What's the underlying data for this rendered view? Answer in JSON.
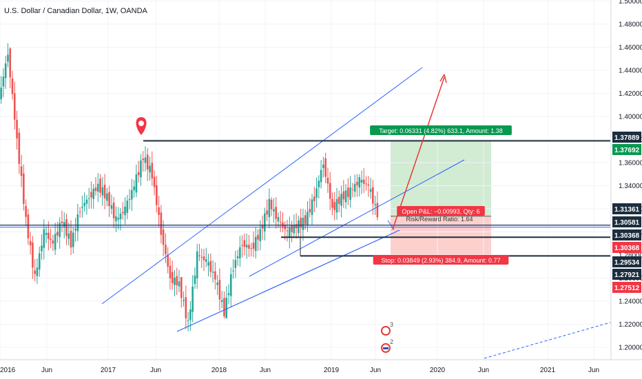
{
  "header": {
    "title": "U.S. Dollar / Canadian Dollar, 1W, OANDA"
  },
  "chart_data": {
    "type": "candlestick",
    "symbol": "U.S. Dollar / Canadian Dollar",
    "interval": "1W",
    "source": "OANDA",
    "ylim": [
      1.18,
      1.5
    ],
    "y_ticks": [
      "1.50000",
      "1.48000",
      "1.46000",
      "1.44000",
      "1.42000",
      "1.40000",
      "1.38000",
      "1.36000",
      "1.34000",
      "1.32000",
      "1.30000",
      "1.28000",
      "1.26000",
      "1.24000",
      "1.22000",
      "1.20000"
    ],
    "x_ticks": [
      "2016",
      "Jun",
      "2017",
      "Jun",
      "2018",
      "Jun",
      "2019",
      "Jun",
      "2020",
      "Jun",
      "2021",
      "Jun"
    ],
    "candles": [
      {
        "date": "2016-01",
        "o": 1.415,
        "h": 1.469,
        "l": 1.39,
        "c": 1.455
      },
      {
        "date": "2016-02",
        "o": 1.455,
        "h": 1.46,
        "l": 1.37,
        "c": 1.38
      },
      {
        "date": "2016-03",
        "o": 1.38,
        "h": 1.39,
        "l": 1.3,
        "c": 1.31
      },
      {
        "date": "2016-04",
        "o": 1.31,
        "h": 1.32,
        "l": 1.25,
        "c": 1.26
      },
      {
        "date": "2016-05",
        "o": 1.26,
        "h": 1.32,
        "l": 1.255,
        "c": 1.3
      },
      {
        "date": "2016-06",
        "o": 1.3,
        "h": 1.32,
        "l": 1.27,
        "c": 1.29
      },
      {
        "date": "2016-07",
        "o": 1.29,
        "h": 1.33,
        "l": 1.28,
        "c": 1.31
      },
      {
        "date": "2016-08",
        "o": 1.31,
        "h": 1.32,
        "l": 1.28,
        "c": 1.29
      },
      {
        "date": "2016-09",
        "o": 1.29,
        "h": 1.33,
        "l": 1.28,
        "c": 1.32
      },
      {
        "date": "2016-10",
        "o": 1.32,
        "h": 1.34,
        "l": 1.3,
        "c": 1.33
      },
      {
        "date": "2016-11",
        "o": 1.33,
        "h": 1.36,
        "l": 1.32,
        "c": 1.34
      },
      {
        "date": "2016-12",
        "o": 1.34,
        "h": 1.36,
        "l": 1.31,
        "c": 1.33
      },
      {
        "date": "2017-01",
        "o": 1.33,
        "h": 1.34,
        "l": 1.3,
        "c": 1.31
      },
      {
        "date": "2017-02",
        "o": 1.31,
        "h": 1.33,
        "l": 1.3,
        "c": 1.32
      },
      {
        "date": "2017-03",
        "o": 1.32,
        "h": 1.35,
        "l": 1.31,
        "c": 1.34
      },
      {
        "date": "2017-04",
        "o": 1.34,
        "h": 1.37,
        "l": 1.33,
        "c": 1.365
      },
      {
        "date": "2017-05",
        "o": 1.365,
        "h": 1.378,
        "l": 1.34,
        "c": 1.35
      },
      {
        "date": "2017-06",
        "o": 1.35,
        "h": 1.36,
        "l": 1.29,
        "c": 1.3
      },
      {
        "date": "2017-07",
        "o": 1.3,
        "h": 1.31,
        "l": 1.25,
        "c": 1.26
      },
      {
        "date": "2017-08",
        "o": 1.26,
        "h": 1.28,
        "l": 1.24,
        "c": 1.255
      },
      {
        "date": "2017-09",
        "o": 1.255,
        "h": 1.26,
        "l": 1.206,
        "c": 1.22
      },
      {
        "date": "2017-10",
        "o": 1.22,
        "h": 1.29,
        "l": 1.21,
        "c": 1.28
      },
      {
        "date": "2017-11",
        "o": 1.28,
        "h": 1.295,
        "l": 1.25,
        "c": 1.275
      },
      {
        "date": "2017-12",
        "o": 1.275,
        "h": 1.29,
        "l": 1.25,
        "c": 1.26
      },
      {
        "date": "2018-01",
        "o": 1.26,
        "h": 1.27,
        "l": 1.225,
        "c": 1.23
      },
      {
        "date": "2018-02",
        "o": 1.23,
        "h": 1.28,
        "l": 1.225,
        "c": 1.27
      },
      {
        "date": "2018-03",
        "o": 1.27,
        "h": 1.31,
        "l": 1.26,
        "c": 1.29
      },
      {
        "date": "2018-04",
        "o": 1.29,
        "h": 1.3,
        "l": 1.255,
        "c": 1.285
      },
      {
        "date": "2018-05",
        "o": 1.285,
        "h": 1.31,
        "l": 1.27,
        "c": 1.3
      },
      {
        "date": "2018-06",
        "o": 1.3,
        "h": 1.34,
        "l": 1.29,
        "c": 1.325
      },
      {
        "date": "2018-07",
        "o": 1.325,
        "h": 1.33,
        "l": 1.3,
        "c": 1.31
      },
      {
        "date": "2018-08",
        "o": 1.31,
        "h": 1.32,
        "l": 1.29,
        "c": 1.3
      },
      {
        "date": "2018-09",
        "o": 1.3,
        "h": 1.32,
        "l": 1.28,
        "c": 1.305
      },
      {
        "date": "2018-10",
        "o": 1.305,
        "h": 1.32,
        "l": 1.28,
        "c": 1.31
      },
      {
        "date": "2018-11",
        "o": 1.31,
        "h": 1.34,
        "l": 1.3,
        "c": 1.33
      },
      {
        "date": "2018-12",
        "o": 1.33,
        "h": 1.365,
        "l": 1.32,
        "c": 1.36
      },
      {
        "date": "2019-01",
        "o": 1.36,
        "h": 1.37,
        "l": 1.31,
        "c": 1.32
      },
      {
        "date": "2019-02",
        "o": 1.32,
        "h": 1.34,
        "l": 1.31,
        "c": 1.33
      },
      {
        "date": "2019-03",
        "o": 1.33,
        "h": 1.35,
        "l": 1.32,
        "c": 1.335
      },
      {
        "date": "2019-04",
        "o": 1.335,
        "h": 1.35,
        "l": 1.33,
        "c": 1.345
      },
      {
        "date": "2019-05",
        "o": 1.345,
        "h": 1.36,
        "l": 1.33,
        "c": 1.34
      },
      {
        "date": "2019-06",
        "o": 1.34,
        "h": 1.35,
        "l": 1.31,
        "c": 1.315
      },
      {
        "date": "2019-07",
        "o": 1.315,
        "h": 1.32,
        "l": 1.3,
        "c": 1.305
      }
    ]
  },
  "price_labels": [
    {
      "value": "1.37889",
      "bg": "#1c2e3f",
      "fg": "#ffffff"
    },
    {
      "value": "1.37692",
      "bg": "#089950",
      "fg": "#ffffff"
    },
    {
      "value": "1.31361",
      "bg": "#1c2e3f",
      "fg": "#ffffff"
    },
    {
      "value": "1.30581",
      "bg": "#1c2e3f",
      "fg": "#ffffff"
    },
    {
      "value": "1.30368",
      "bg": "#1c2e3f",
      "fg": "#ffffff"
    },
    {
      "value": "1.30368",
      "bg": "#f23645",
      "fg": "#ffffff"
    },
    {
      "value": "1.29534",
      "bg": "#1c2e3f",
      "fg": "#ffffff"
    },
    {
      "value": "1.27921",
      "bg": "#1c2e3f",
      "fg": "#ffffff"
    },
    {
      "value": "1.27512",
      "bg": "#f23645",
      "fg": "#ffffff"
    }
  ],
  "position": {
    "target_label": "Target: 0.06331 (4.82%) 633.1, Amount: 1.38",
    "stop_label": "Stop: 0.03849 (2.93%) 384.9, Amount: 0.77",
    "pnl_label": "Open P&L: −0.00993, Qty: 6",
    "rr_label": "Risk/Reward Ratio: 1.64"
  },
  "colors": {
    "up": "#26a69a",
    "down": "#ef5350",
    "trend": "#2962ff",
    "level": "#1c2e3f",
    "arrow": "#e53935",
    "profit_fill": "rgba(76,175,80,0.25)",
    "loss_fill": "rgba(244,67,54,0.25)"
  },
  "icons": [
    "map-pin-icon",
    "canada-flag-icon",
    "usa-flag-icon"
  ],
  "event_counts": [
    "3",
    "2"
  ]
}
